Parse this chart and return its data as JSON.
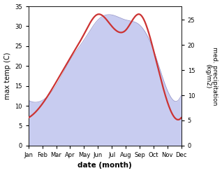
{
  "months": [
    "Jan",
    "Feb",
    "Mar",
    "Apr",
    "May",
    "Jun",
    "Jul",
    "Aug",
    "Sep",
    "Oct",
    "Nov",
    "Dec"
  ],
  "temperature": [
    7,
    10.5,
    16,
    22,
    28,
    33,
    30,
    29,
    33,
    24,
    11,
    7
  ],
  "precipitation": [
    9,
    9,
    12,
    17,
    21,
    25,
    26,
    25,
    24,
    19,
    11,
    10
  ],
  "temp_ylim": [
    0,
    35
  ],
  "precip_ylim": [
    0,
    27.7
  ],
  "temp_yticks": [
    0,
    5,
    10,
    15,
    20,
    25,
    30,
    35
  ],
  "precip_yticks": [
    0,
    5,
    10,
    15,
    20,
    25
  ],
  "temp_ylabel": "max temp (C)",
  "precip_ylabel": "med. precipitation\n(kg/m2)",
  "xlabel": "date (month)",
  "line_color": "#cc3333",
  "fill_color": "#c8ccf0",
  "fill_edge_color": "#9999cc",
  "bg_color": "#ffffff",
  "line_width": 1.6
}
